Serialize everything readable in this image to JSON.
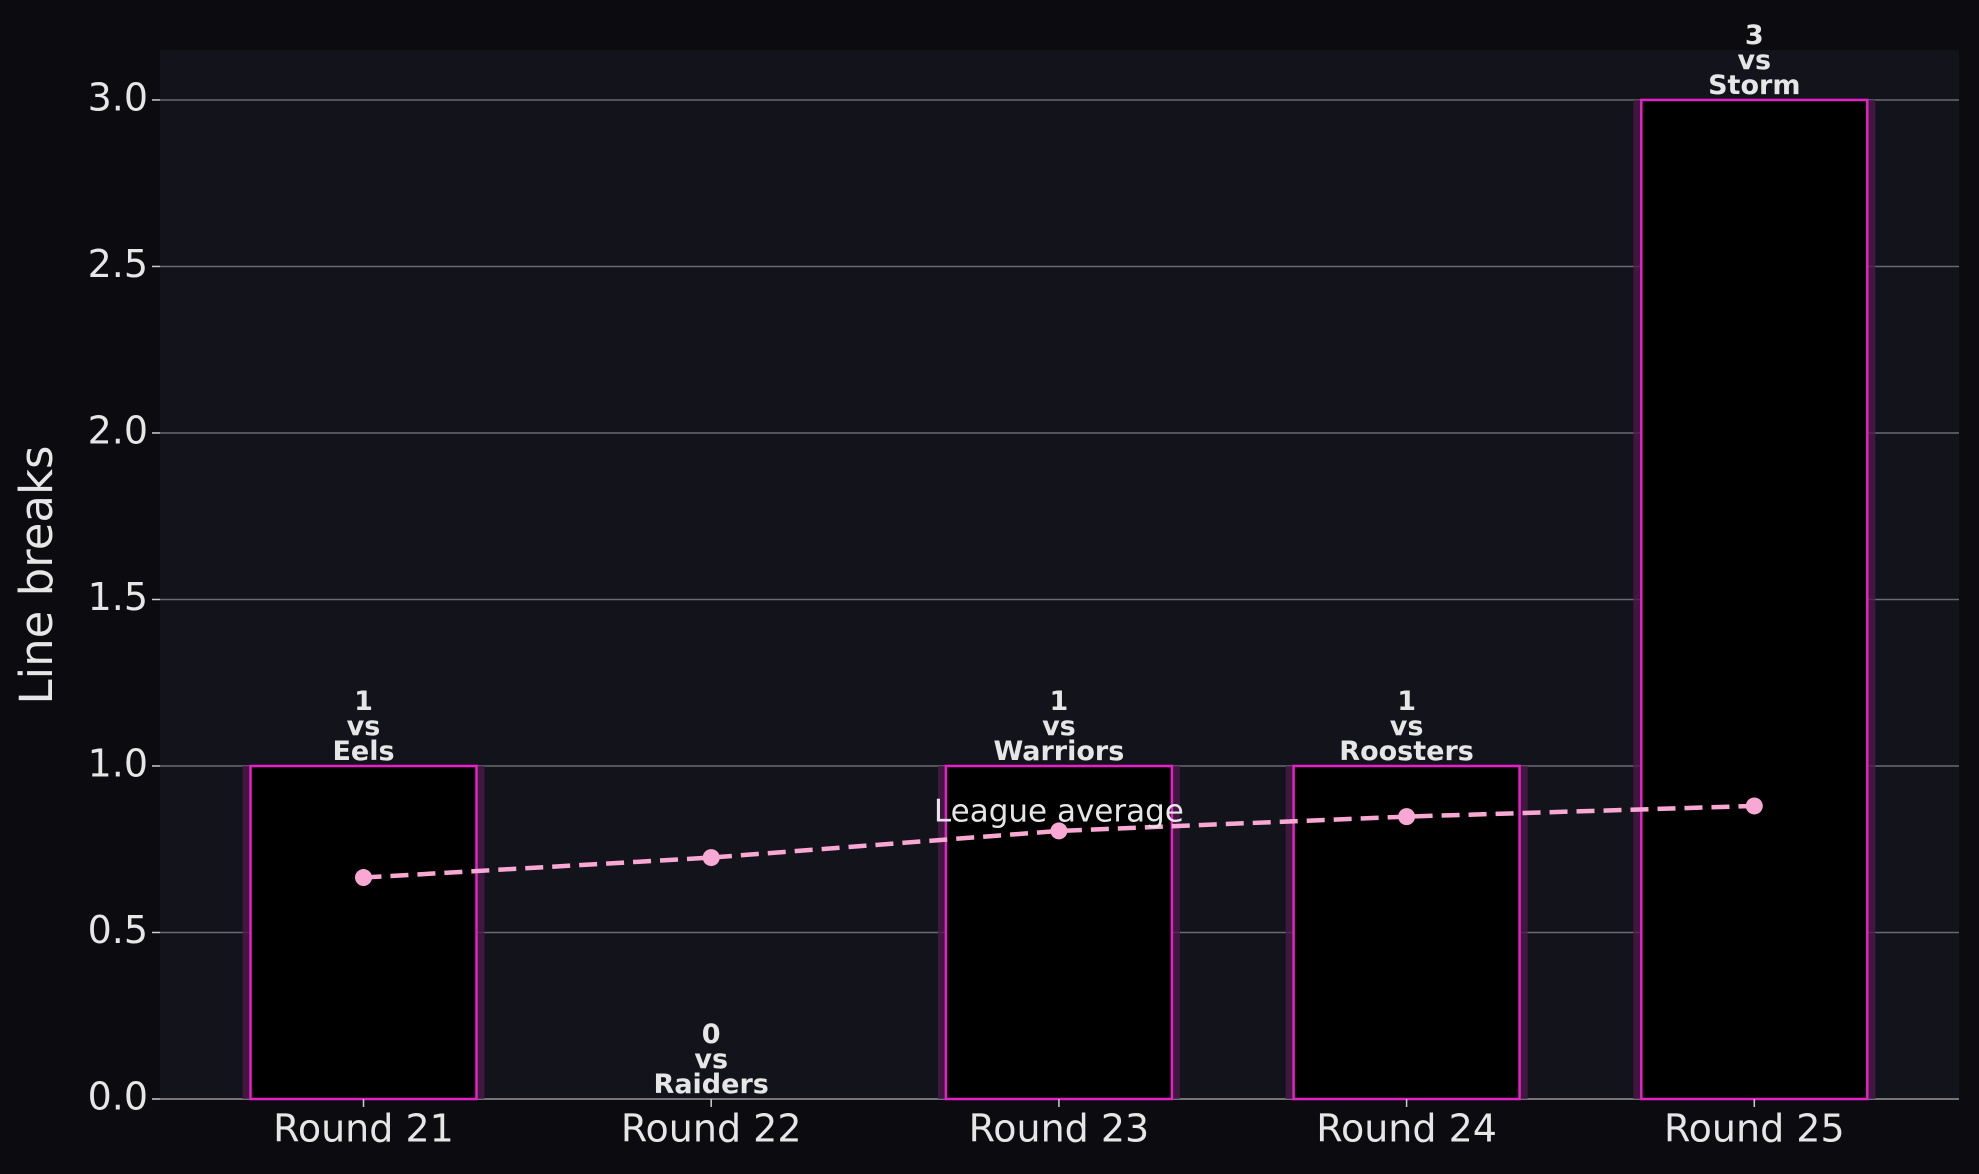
{
  "chart_data": {
    "type": "bar",
    "y_label": "Line breaks",
    "categories": [
      "Round 21",
      "Round 22",
      "Round 23",
      "Round 24",
      "Round 25"
    ],
    "values": [
      1,
      0,
      1,
      1,
      3
    ],
    "value_labels": [
      "1\nvs\nEels",
      "0\nvs\nRaiders",
      "1\nvs\nWarriors",
      "1\nvs\nRoosters",
      "3\nvs\nStorm"
    ],
    "color": "#000000",
    "edge_color": "#e61fc9",
    "line_series": {
      "name": "League average",
      "color": "#f9a8d4",
      "values": [
        0.665,
        0.725,
        0.805,
        0.848,
        0.88
      ]
    },
    "ylim": [
      0,
      3.15
    ],
    "yticks": [
      {
        "value": 0,
        "label": "0.0"
      },
      {
        "value": 0.5,
        "label": "0.5"
      },
      {
        "value": 1,
        "label": "1.0"
      },
      {
        "value": 1.5,
        "label": "1.5"
      },
      {
        "value": 2,
        "label": "2.0"
      },
      {
        "value": 2.5,
        "label": "2.5"
      },
      {
        "value": 3,
        "label": "3.0"
      }
    ],
    "grid": true
  }
}
